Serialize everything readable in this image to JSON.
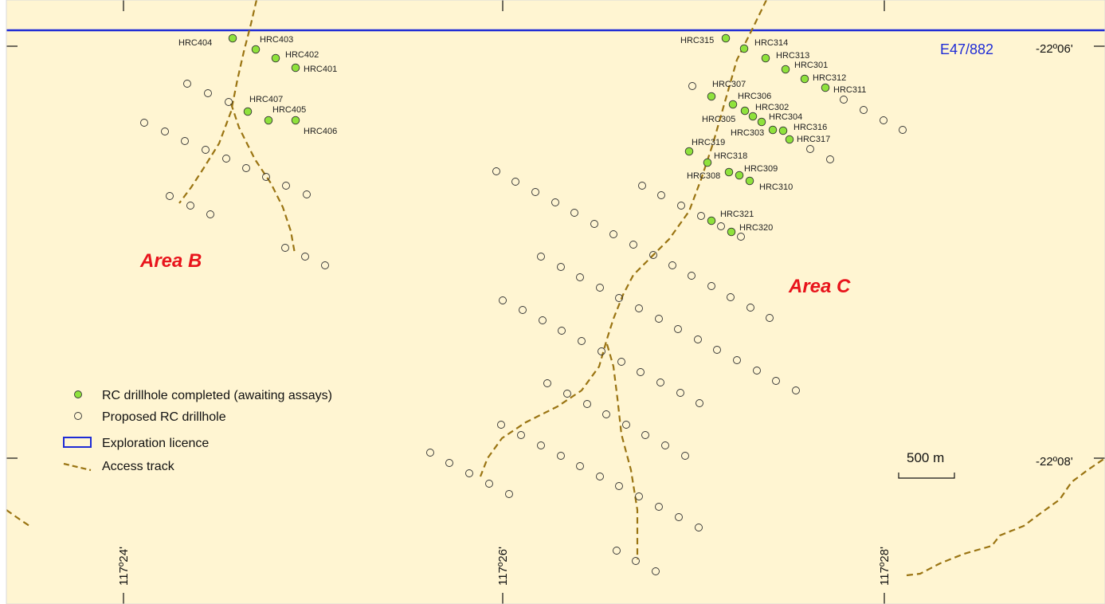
{
  "map": {
    "background_color": "#fff5d2",
    "licence_color": "#1e2bd6",
    "track_color": "#9a7412",
    "completed_color": "#8fe23c",
    "licence_id": "E47/882",
    "area_labels": [
      "Area B",
      "Area C"
    ],
    "latitude_labels": [
      "-22º06'",
      "-22º08'"
    ],
    "longitude_labels": [
      "117º24'",
      "117º26'",
      "117º28'"
    ],
    "scale_label": "500 m"
  },
  "legend": {
    "completed": "RC drillhole completed (awaiting assays)",
    "proposed": "Proposed RC drillhole",
    "licence": "Exploration licence",
    "track": "Access track"
  },
  "completed_holes": [
    "HRC404",
    "HRC403",
    "HRC402",
    "HRC401",
    "HRC407",
    "HRC405",
    "HRC406",
    "HRC315",
    "HRC314",
    "HRC313",
    "HRC301",
    "HRC312",
    "HRC311",
    "HRC307",
    "HRC306",
    "HRC302",
    "HRC305",
    "HRC304",
    "HRC303",
    "HRC316",
    "HRC317",
    "HRC319",
    "HRC318",
    "HRC308",
    "HRC309",
    "HRC310",
    "HRC321",
    "HRC320"
  ]
}
